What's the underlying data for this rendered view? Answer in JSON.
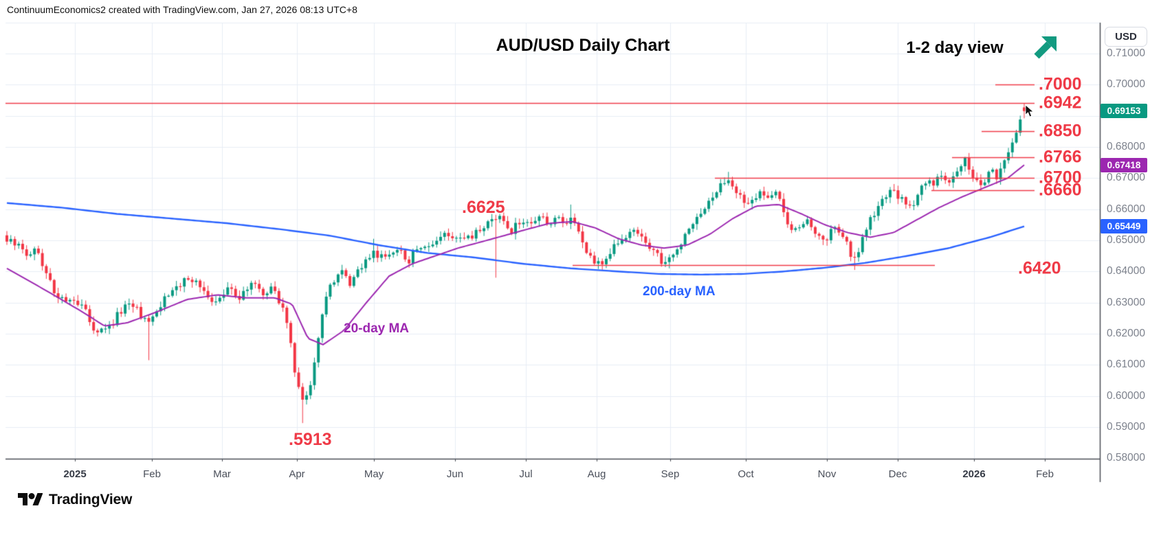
{
  "header": {
    "text": "ContinuumEconomics2 created with TradingView.com, Jan 27, 2026 08:13 UTC+8"
  },
  "titles": {
    "main": "AUD/USD Daily Chart",
    "view_note": "1-2 day view"
  },
  "icons": {
    "trend_arrow": "up-right-arrow",
    "trend_arrow_color": "#129a80",
    "cursor": "mouse-pointer"
  },
  "axis": {
    "currency_label": "USD"
  },
  "watermark": {
    "brand": "TradingView"
  },
  "chart_data": {
    "type": "candlestick",
    "symbol": "AUD/USD",
    "timeframe": "Daily",
    "title": "AUD/USD Daily Chart",
    "up_color": "#089981",
    "down_color": "#f23645",
    "level_color": "#ef3a47",
    "grid": true,
    "y_axis": {
      "min": 0.58,
      "max": 0.72,
      "tick_step": 0.01
    },
    "y_ticks": [
      "0.71000",
      "0.70000",
      "0.68000",
      "0.67000",
      "0.66000",
      "0.65000",
      "0.64000",
      "0.63000",
      "0.62000",
      "0.61000",
      "0.60000",
      "0.59000",
      "0.58000"
    ],
    "x_labels": [
      {
        "label": "2025",
        "year": true
      },
      {
        "label": "Feb"
      },
      {
        "label": "Mar"
      },
      {
        "label": "Apr"
      },
      {
        "label": "May"
      },
      {
        "label": "Jun"
      },
      {
        "label": "Jul"
      },
      {
        "label": "Aug"
      },
      {
        "label": "Sep"
      },
      {
        "label": "Oct"
      },
      {
        "label": "Nov"
      },
      {
        "label": "Dec"
      },
      {
        "label": "2026",
        "year": true
      },
      {
        "label": "Feb"
      }
    ],
    "last_price": 0.69153,
    "last_price_label": "0.69153",
    "levels": [
      {
        "label": ".7000",
        "value": 0.7,
        "x_start": 1448,
        "x_end": 1505
      },
      {
        "label": ".6942",
        "value": 0.6942,
        "x_start": 8,
        "x_end": 1505
      },
      {
        "label": ".6850",
        "value": 0.685,
        "x_start": 1428,
        "x_end": 1505
      },
      {
        "label": ".6766",
        "value": 0.6766,
        "x_start": 1385,
        "x_end": 1505
      },
      {
        "label": ".6700",
        "value": 0.67,
        "x_start": 1040,
        "x_end": 1505
      },
      {
        "label": ".6660",
        "value": 0.666,
        "x_start": 1355,
        "x_end": 1505
      },
      {
        "label": ".6420",
        "value": 0.642,
        "x_start": 833,
        "x_end": 1360
      }
    ],
    "annotations": [
      {
        "text": ".6625",
        "price": 0.6625
      },
      {
        "text": ".5913",
        "price": 0.5913
      }
    ],
    "series": {
      "close_path": [
        [
          10,
          0.6505
        ],
        [
          25,
          0.648
        ],
        [
          40,
          0.6455
        ],
        [
          52,
          0.6475
        ],
        [
          66,
          0.64
        ],
        [
          80,
          0.6335
        ],
        [
          95,
          0.631
        ],
        [
          109,
          0.6295
        ],
        [
          123,
          0.6275
        ],
        [
          137,
          0.622
        ],
        [
          151,
          0.6205
        ],
        [
          165,
          0.624
        ],
        [
          179,
          0.6285
        ],
        [
          192,
          0.63
        ],
        [
          205,
          0.6255
        ],
        [
          218,
          0.6225
        ],
        [
          231,
          0.6285
        ],
        [
          245,
          0.633
        ],
        [
          259,
          0.6355
        ],
        [
          273,
          0.6375
        ],
        [
          287,
          0.636
        ],
        [
          300,
          0.6315
        ],
        [
          312,
          0.629
        ],
        [
          323,
          0.6335
        ],
        [
          335,
          0.635
        ],
        [
          347,
          0.6315
        ],
        [
          359,
          0.634
        ],
        [
          371,
          0.6365
        ],
        [
          383,
          0.632
        ],
        [
          394,
          0.6345
        ],
        [
          405,
          0.631
        ],
        [
          414,
          0.6265
        ],
        [
          422,
          0.6185
        ],
        [
          430,
          0.6065
        ],
        [
          438,
          0.5995
        ],
        [
          445,
          0.6005
        ],
        [
          451,
          0.6035
        ],
        [
          458,
          0.612
        ],
        [
          465,
          0.6225
        ],
        [
          472,
          0.63
        ],
        [
          479,
          0.6345
        ],
        [
          487,
          0.638
        ],
        [
          495,
          0.6415
        ],
        [
          503,
          0.6375
        ],
        [
          511,
          0.636
        ],
        [
          519,
          0.6395
        ],
        [
          527,
          0.6415
        ],
        [
          535,
          0.6435
        ],
        [
          543,
          0.6475
        ],
        [
          551,
          0.6435
        ],
        [
          559,
          0.6455
        ],
        [
          567,
          0.6465
        ],
        [
          576,
          0.648
        ],
        [
          585,
          0.6455
        ],
        [
          594,
          0.6435
        ],
        [
          603,
          0.646
        ],
        [
          613,
          0.6465
        ],
        [
          623,
          0.648
        ],
        [
          633,
          0.6495
        ],
        [
          643,
          0.6515
        ],
        [
          653,
          0.652
        ],
        [
          663,
          0.6505
        ],
        [
          673,
          0.6515
        ],
        [
          683,
          0.65
        ],
        [
          693,
          0.6525
        ],
        [
          703,
          0.655
        ],
        [
          713,
          0.6565
        ],
        [
          723,
          0.6575
        ],
        [
          733,
          0.656
        ],
        [
          743,
          0.6525
        ],
        [
          752,
          0.6555
        ],
        [
          761,
          0.6545
        ],
        [
          770,
          0.6555
        ],
        [
          779,
          0.6565
        ],
        [
          788,
          0.6575
        ],
        [
          797,
          0.655
        ],
        [
          806,
          0.6565
        ],
        [
          815,
          0.6575
        ],
        [
          824,
          0.6555
        ],
        [
          833,
          0.658
        ],
        [
          840,
          0.654
        ],
        [
          847,
          0.6495
        ],
        [
          854,
          0.646
        ],
        [
          861,
          0.6435
        ],
        [
          868,
          0.6425
        ],
        [
          876,
          0.6435
        ],
        [
          884,
          0.6455
        ],
        [
          892,
          0.6475
        ],
        [
          900,
          0.649
        ],
        [
          908,
          0.6505
        ],
        [
          916,
          0.6515
        ],
        [
          924,
          0.6525
        ],
        [
          932,
          0.6515
        ],
        [
          940,
          0.6495
        ],
        [
          948,
          0.6475
        ],
        [
          956,
          0.645
        ],
        [
          964,
          0.643
        ],
        [
          971,
          0.6425
        ],
        [
          978,
          0.6445
        ],
        [
          985,
          0.6475
        ],
        [
          992,
          0.65
        ],
        [
          1000,
          0.6525
        ],
        [
          1008,
          0.655
        ],
        [
          1016,
          0.6575
        ],
        [
          1024,
          0.66
        ],
        [
          1032,
          0.6625
        ],
        [
          1040,
          0.665
        ],
        [
          1048,
          0.667
        ],
        [
          1055,
          0.6685
        ],
        [
          1061,
          0.6695
        ],
        [
          1067,
          0.6675
        ],
        [
          1074,
          0.665
        ],
        [
          1081,
          0.6635
        ],
        [
          1088,
          0.662
        ],
        [
          1096,
          0.664
        ],
        [
          1104,
          0.6655
        ],
        [
          1112,
          0.6645
        ],
        [
          1120,
          0.6625
        ],
        [
          1128,
          0.665
        ],
        [
          1136,
          0.6615
        ],
        [
          1144,
          0.656
        ],
        [
          1152,
          0.653
        ],
        [
          1160,
          0.6525
        ],
        [
          1168,
          0.6545
        ],
        [
          1176,
          0.6565
        ],
        [
          1184,
          0.654
        ],
        [
          1192,
          0.6515
        ],
        [
          1200,
          0.65
        ],
        [
          1208,
          0.6525
        ],
        [
          1216,
          0.6545
        ],
        [
          1224,
          0.6525
        ],
        [
          1232,
          0.6495
        ],
        [
          1237,
          0.646
        ],
        [
          1242,
          0.6435
        ],
        [
          1248,
          0.6465
        ],
        [
          1254,
          0.65
        ],
        [
          1260,
          0.6535
        ],
        [
          1267,
          0.6565
        ],
        [
          1274,
          0.659
        ],
        [
          1281,
          0.6615
        ],
        [
          1288,
          0.6635
        ],
        [
          1295,
          0.665
        ],
        [
          1302,
          0.6655
        ],
        [
          1309,
          0.6635
        ],
        [
          1316,
          0.6615
        ],
        [
          1323,
          0.66
        ],
        [
          1330,
          0.6625
        ],
        [
          1337,
          0.6655
        ],
        [
          1344,
          0.668
        ],
        [
          1351,
          0.67
        ],
        [
          1358,
          0.6685
        ],
        [
          1365,
          0.6705
        ],
        [
          1372,
          0.669
        ],
        [
          1379,
          0.6675
        ],
        [
          1386,
          0.6695
        ],
        [
          1393,
          0.6715
        ],
        [
          1400,
          0.674
        ],
        [
          1404,
          0.676
        ],
        [
          1409,
          0.6725
        ],
        [
          1414,
          0.6695
        ],
        [
          1419,
          0.671
        ],
        [
          1424,
          0.6695
        ],
        [
          1429,
          0.668
        ],
        [
          1434,
          0.6695
        ],
        [
          1439,
          0.6715
        ],
        [
          1444,
          0.6725
        ],
        [
          1449,
          0.6705
        ],
        [
          1454,
          0.672
        ],
        [
          1459,
          0.674
        ],
        [
          1464,
          0.6765
        ],
        [
          1469,
          0.679
        ],
        [
          1474,
          0.6825
        ],
        [
          1479,
          0.686
        ],
        [
          1484,
          0.69
        ],
        [
          1490,
          0.69153
        ]
      ],
      "ma20": {
        "name": "20-day MA",
        "color": "#9c27b0",
        "last": 0.67418,
        "last_label": "0.67418",
        "path": [
          [
            10,
            0.641
          ],
          [
            70,
            0.6335
          ],
          [
            120,
            0.627
          ],
          [
            152,
            0.6225
          ],
          [
            185,
            0.6235
          ],
          [
            228,
            0.627
          ],
          [
            272,
            0.631
          ],
          [
            316,
            0.6325
          ],
          [
            359,
            0.6315
          ],
          [
            400,
            0.6315
          ],
          [
            425,
            0.6295
          ],
          [
            448,
            0.6185
          ],
          [
            470,
            0.6165
          ],
          [
            500,
            0.621
          ],
          [
            533,
            0.63
          ],
          [
            566,
            0.6385
          ],
          [
            600,
            0.6425
          ],
          [
            633,
            0.645
          ],
          [
            666,
            0.6475
          ],
          [
            700,
            0.6495
          ],
          [
            733,
            0.6515
          ],
          [
            766,
            0.6535
          ],
          [
            800,
            0.6555
          ],
          [
            833,
            0.656
          ],
          [
            866,
            0.654
          ],
          [
            900,
            0.6505
          ],
          [
            933,
            0.6485
          ],
          [
            966,
            0.6475
          ],
          [
            1000,
            0.6485
          ],
          [
            1033,
            0.652
          ],
          [
            1066,
            0.657
          ],
          [
            1100,
            0.661
          ],
          [
            1133,
            0.6615
          ],
          [
            1166,
            0.6585
          ],
          [
            1200,
            0.655
          ],
          [
            1233,
            0.6525
          ],
          [
            1266,
            0.651
          ],
          [
            1300,
            0.6525
          ],
          [
            1333,
            0.6565
          ],
          [
            1366,
            0.6605
          ],
          [
            1400,
            0.664
          ],
          [
            1433,
            0.667
          ],
          [
            1466,
            0.67
          ],
          [
            1490,
            0.6742
          ]
        ]
      },
      "ma200": {
        "name": "200-day MA",
        "color": "#2962ff",
        "last": 0.65449,
        "last_label": "0.65449",
        "path": [
          [
            10,
            0.662
          ],
          [
            90,
            0.6605
          ],
          [
            170,
            0.6585
          ],
          [
            250,
            0.657
          ],
          [
            330,
            0.6555
          ],
          [
            410,
            0.6535
          ],
          [
            480,
            0.6515
          ],
          [
            550,
            0.6485
          ],
          [
            620,
            0.646
          ],
          [
            690,
            0.6445
          ],
          [
            760,
            0.6425
          ],
          [
            830,
            0.641
          ],
          [
            900,
            0.64
          ],
          [
            960,
            0.6392
          ],
          [
            1020,
            0.639
          ],
          [
            1080,
            0.6392
          ],
          [
            1140,
            0.64
          ],
          [
            1200,
            0.6412
          ],
          [
            1260,
            0.6428
          ],
          [
            1320,
            0.645
          ],
          [
            1380,
            0.6475
          ],
          [
            1440,
            0.651
          ],
          [
            1490,
            0.65449
          ]
        ]
      }
    },
    "special": {
      "april_low": 0.5913,
      "wick_lows": [
        {
          "x": 218,
          "low": 0.6115
        },
        {
          "x": 719,
          "low": 0.638
        },
        {
          "x": 868,
          "low": 0.6408
        },
        {
          "x": 971,
          "low": 0.641
        },
        {
          "x": 1242,
          "low": 0.6405
        }
      ],
      "wick_highs": [
        {
          "x": 543,
          "high": 0.6505
        },
        {
          "x": 833,
          "high": 0.6615
        },
        {
          "x": 1061,
          "high": 0.672
        }
      ],
      "last_candle": {
        "open": 0.6927,
        "close": 0.69153,
        "high": 0.694,
        "low": 0.6892
      }
    }
  }
}
